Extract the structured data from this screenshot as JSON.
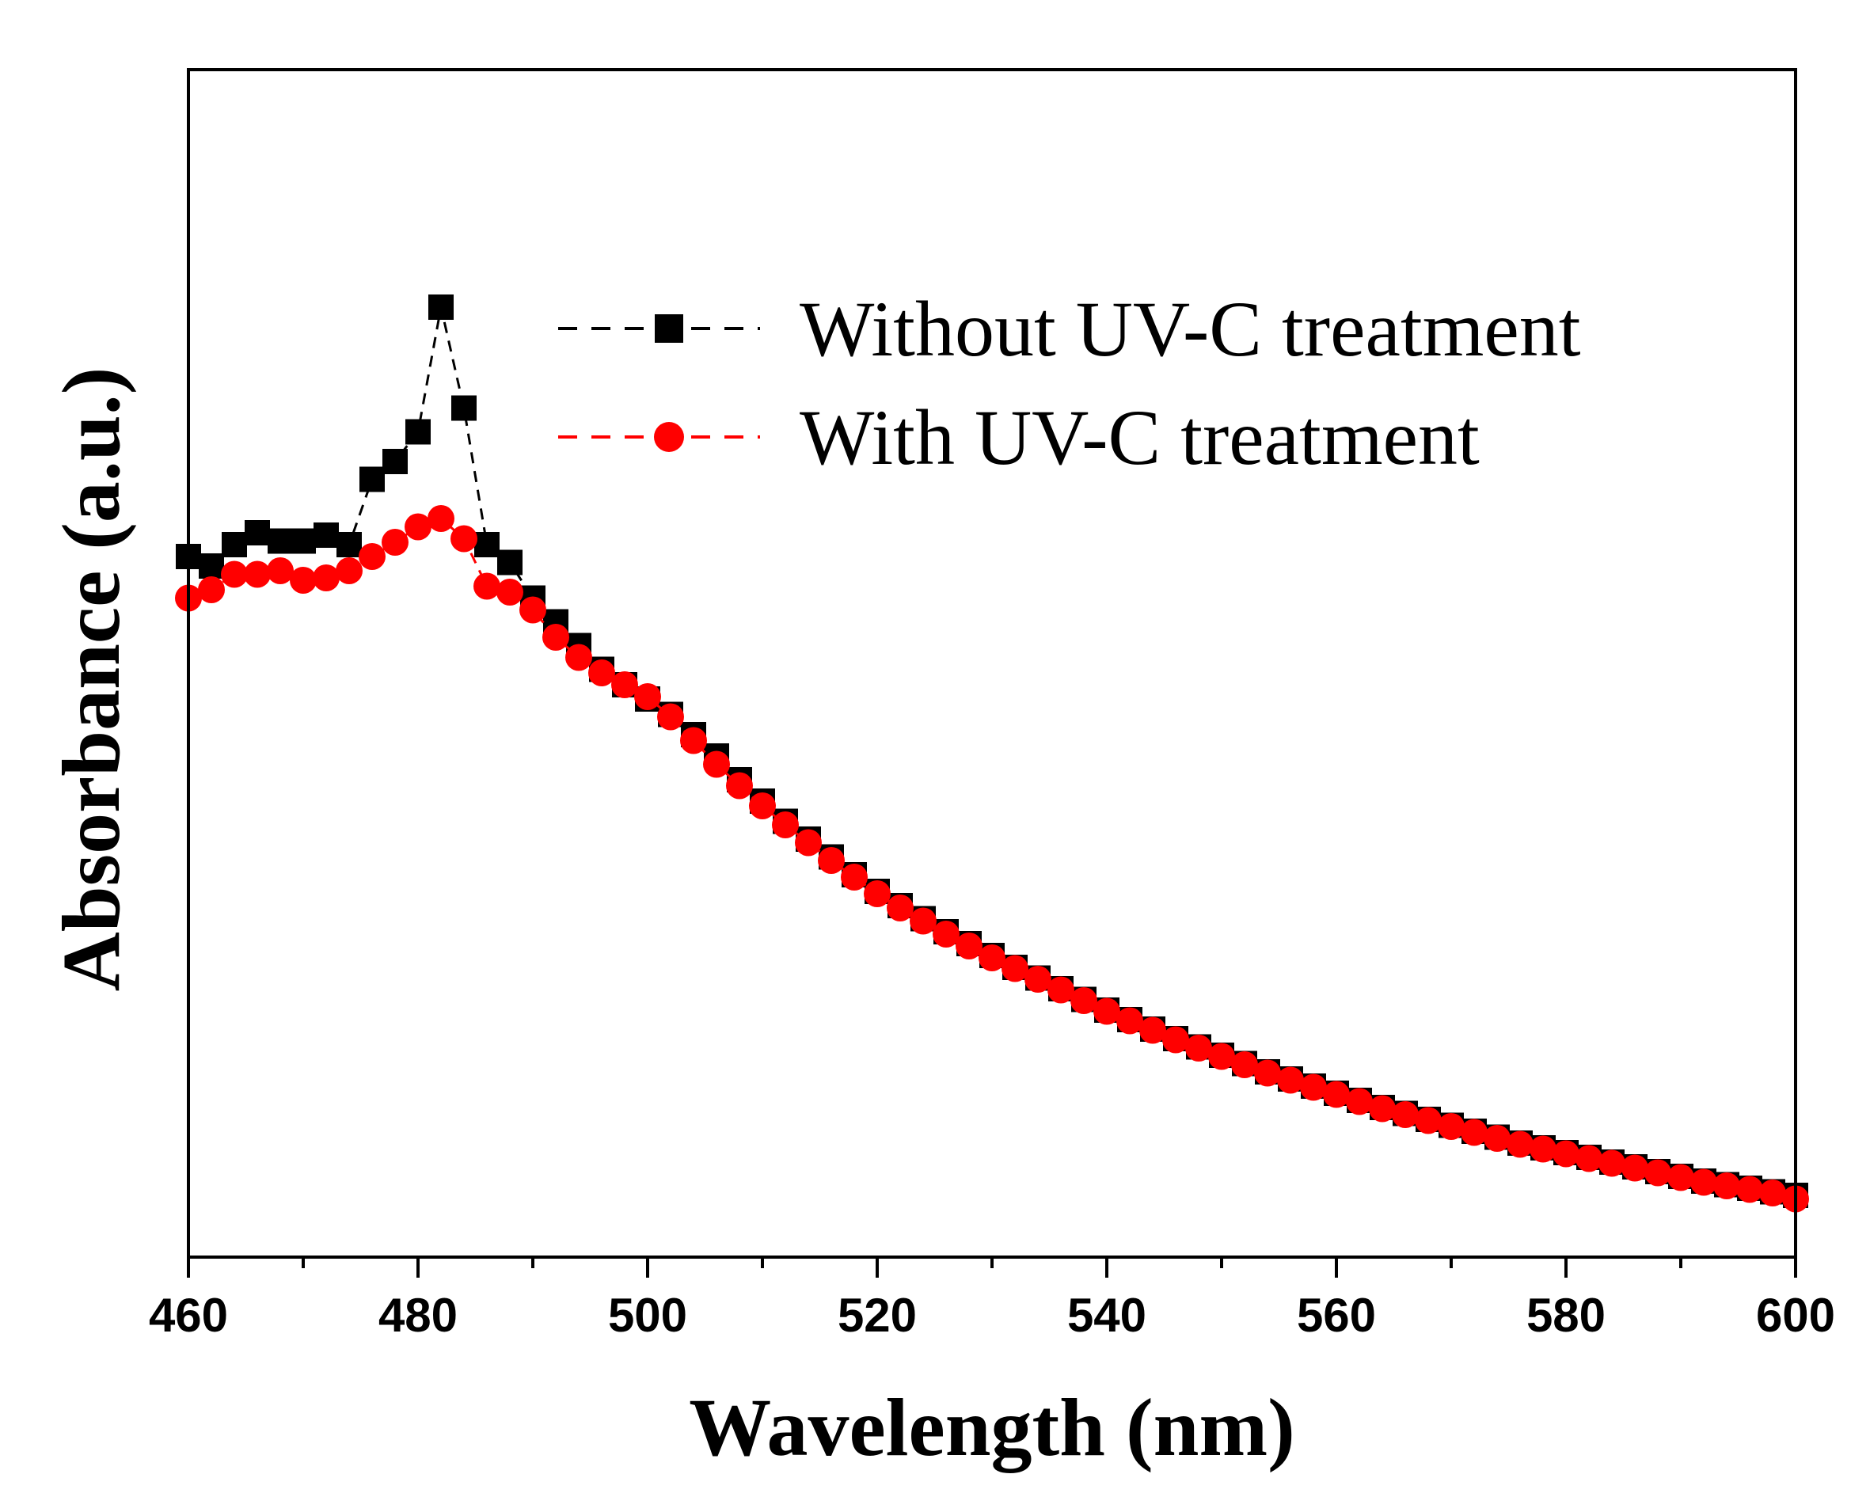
{
  "chart_data": {
    "type": "line",
    "title": "",
    "xlabel": "Wavelength (nm)",
    "ylabel": "Absorbance (a.u.)",
    "xlim": [
      460,
      600
    ],
    "ylim": [
      0,
      1
    ],
    "x_ticks": [
      460,
      480,
      500,
      520,
      540,
      560,
      580,
      600
    ],
    "y_ticks_labeled": false,
    "legend_position": "top-right",
    "x": [
      460,
      462,
      464,
      466,
      468,
      470,
      472,
      474,
      476,
      478,
      480,
      482,
      484,
      486,
      488,
      490,
      492,
      494,
      496,
      498,
      500,
      502,
      504,
      506,
      508,
      510,
      512,
      514,
      516,
      518,
      520,
      522,
      524,
      526,
      528,
      530,
      532,
      534,
      536,
      538,
      540,
      542,
      544,
      546,
      548,
      550,
      552,
      554,
      556,
      558,
      560,
      562,
      564,
      566,
      568,
      570,
      572,
      574,
      576,
      578,
      580,
      582,
      584,
      586,
      588,
      590,
      592,
      594,
      596,
      598,
      600
    ],
    "series": [
      {
        "name": "Without UV-C treatment",
        "color": "#000000",
        "marker": "square",
        "line_style": "dashed",
        "values": [
          0.59,
          0.582,
          0.6,
          0.61,
          0.603,
          0.603,
          0.608,
          0.6,
          0.655,
          0.67,
          0.695,
          0.8,
          0.715,
          0.6,
          0.585,
          0.555,
          0.535,
          0.515,
          0.495,
          0.482,
          0.47,
          0.457,
          0.44,
          0.422,
          0.402,
          0.384,
          0.367,
          0.352,
          0.337,
          0.322,
          0.308,
          0.296,
          0.285,
          0.274,
          0.264,
          0.254,
          0.244,
          0.235,
          0.226,
          0.217,
          0.208,
          0.2,
          0.192,
          0.184,
          0.177,
          0.17,
          0.163,
          0.156,
          0.15,
          0.144,
          0.138,
          0.132,
          0.126,
          0.121,
          0.116,
          0.111,
          0.106,
          0.101,
          0.096,
          0.092,
          0.088,
          0.084,
          0.08,
          0.076,
          0.072,
          0.068,
          0.064,
          0.061,
          0.058,
          0.055,
          0.052
        ]
      },
      {
        "name": "With UV-C treatment",
        "color": "#ff0000",
        "marker": "circle",
        "line_style": "dashed",
        "values": [
          0.555,
          0.562,
          0.575,
          0.575,
          0.578,
          0.57,
          0.572,
          0.578,
          0.59,
          0.602,
          0.615,
          0.622,
          0.605,
          0.565,
          0.56,
          0.545,
          0.522,
          0.505,
          0.492,
          0.482,
          0.472,
          0.455,
          0.435,
          0.415,
          0.397,
          0.38,
          0.364,
          0.349,
          0.334,
          0.32,
          0.306,
          0.294,
          0.283,
          0.272,
          0.262,
          0.252,
          0.243,
          0.234,
          0.225,
          0.216,
          0.207,
          0.199,
          0.191,
          0.183,
          0.176,
          0.169,
          0.162,
          0.155,
          0.149,
          0.143,
          0.137,
          0.131,
          0.125,
          0.12,
          0.115,
          0.11,
          0.105,
          0.1,
          0.095,
          0.091,
          0.087,
          0.083,
          0.079,
          0.075,
          0.071,
          0.067,
          0.063,
          0.06,
          0.057,
          0.054,
          0.049
        ]
      }
    ]
  }
}
